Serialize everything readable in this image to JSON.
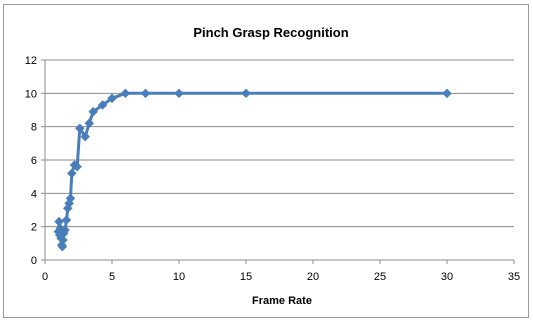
{
  "chart_data": {
    "type": "scatter",
    "title": "Pinch Grasp Recognition",
    "xlabel": "Frame Rate",
    "ylabel": "",
    "xlim": [
      0,
      35
    ],
    "ylim": [
      0,
      12
    ],
    "xticks": [
      0,
      5,
      10,
      15,
      20,
      25,
      30,
      35
    ],
    "yticks": [
      0,
      2,
      4,
      6,
      8,
      10,
      12
    ],
    "grid": "horizontal",
    "legend": "none",
    "series": [
      {
        "color": "#4a7ebb",
        "marker": "diamond",
        "line": true,
        "points": [
          [
            1.0,
            1.7
          ],
          [
            1.05,
            2.3
          ],
          [
            1.1,
            1.5
          ],
          [
            1.15,
            1.9
          ],
          [
            1.2,
            1.3
          ],
          [
            1.25,
            0.9
          ],
          [
            1.3,
            0.8
          ],
          [
            1.35,
            1.2
          ],
          [
            1.4,
            1.6
          ],
          [
            1.5,
            1.8
          ],
          [
            1.6,
            2.4
          ],
          [
            1.7,
            3.1
          ],
          [
            1.8,
            3.4
          ],
          [
            1.9,
            3.7
          ],
          [
            2.0,
            5.2
          ],
          [
            2.2,
            5.7
          ],
          [
            2.4,
            5.6
          ],
          [
            2.6,
            7.9
          ],
          [
            3.0,
            7.4
          ],
          [
            3.3,
            8.2
          ],
          [
            3.6,
            8.9
          ],
          [
            4.3,
            9.3
          ],
          [
            5.0,
            9.7
          ],
          [
            6.0,
            10.0
          ],
          [
            7.5,
            10.0
          ],
          [
            10.0,
            10.0
          ],
          [
            15.0,
            10.0
          ],
          [
            30.0,
            10.0
          ]
        ]
      }
    ]
  }
}
